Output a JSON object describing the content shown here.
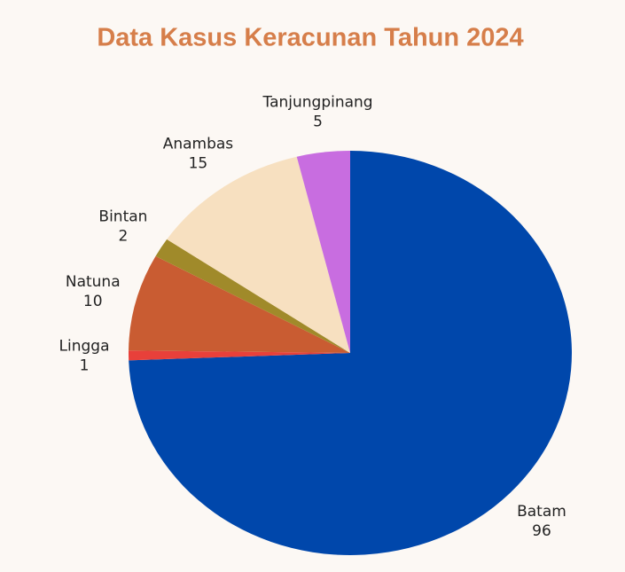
{
  "chart_data": {
    "type": "pie",
    "title": "Data Kasus Keracunan Tahun 2024",
    "categories": [
      "Batam",
      "Lingga",
      "Natuna",
      "Bintan",
      "Anambas",
      "Tanjungpinang"
    ],
    "values": [
      96,
      1,
      10,
      2,
      15,
      5
    ],
    "colors": [
      "#0047ab",
      "#e8403a",
      "#c95c32",
      "#a08a2a",
      "#f7e0c0",
      "#c86de0"
    ]
  }
}
